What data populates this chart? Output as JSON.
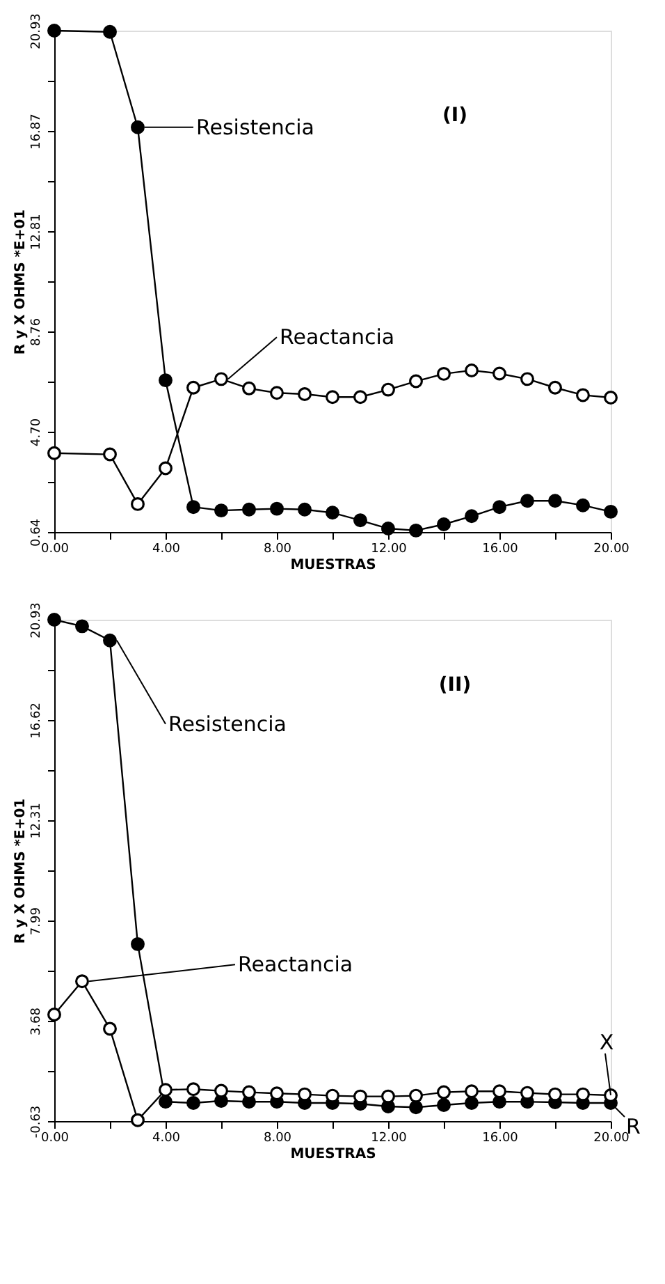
{
  "chart_data": [
    {
      "type": "line",
      "title": "(I)",
      "xlabel": "MUESTRAS",
      "ylabel": "R y X OHMS *E+01",
      "marker": "circle",
      "line_style": "solid",
      "grid": false,
      "xlim": [
        0,
        20
      ],
      "xticks": [
        {
          "value": 0,
          "label": "0.00"
        },
        {
          "value": 2,
          "label": null
        },
        {
          "value": 4,
          "label": "4.00"
        },
        {
          "value": 6,
          "label": null
        },
        {
          "value": 8,
          "label": "8.00"
        },
        {
          "value": 10,
          "label": null
        },
        {
          "value": 12,
          "label": "12.00"
        },
        {
          "value": 14,
          "label": null
        },
        {
          "value": 16,
          "label": "16.00"
        },
        {
          "value": 18,
          "label": null
        },
        {
          "value": 20,
          "label": "20.00"
        }
      ],
      "ylim": [
        0.64,
        20.93
      ],
      "yticks": [
        0.64,
        {
          "value": 2.67,
          "label": null
        },
        {
          "value": 4.7,
          "label": "4.70"
        },
        {
          "value": 6.73,
          "label": null
        },
        8.76,
        {
          "value": 10.79,
          "label": null
        },
        12.81,
        {
          "value": 14.84,
          "label": null
        },
        16.87,
        {
          "value": 18.9,
          "label": null
        },
        20.93
      ],
      "x": [
        0,
        2,
        3,
        4,
        5,
        6,
        7,
        8,
        9,
        10,
        11,
        12,
        13,
        14,
        15,
        16,
        17,
        18,
        19,
        20
      ],
      "series": [
        {
          "name": "Resistencia",
          "color": "#000000",
          "values": [
            20.93,
            20.88,
            17.02,
            6.78,
            1.65,
            1.51,
            1.55,
            1.58,
            1.55,
            1.42,
            1.11,
            0.78,
            0.7,
            0.95,
            1.28,
            1.65,
            1.9,
            1.9,
            1.72,
            1.46
          ]
        },
        {
          "name": "Reactancia",
          "color": "#000000",
          "values": [
            3.83,
            3.78,
            1.77,
            3.22,
            6.48,
            6.83,
            6.45,
            6.27,
            6.22,
            6.1,
            6.1,
            6.4,
            6.74,
            7.04,
            7.18,
            7.05,
            6.83,
            6.48,
            6.18,
            6.08
          ]
        }
      ]
    },
    {
      "type": "line",
      "title": "(II)",
      "xlabel": "MUESTRAS",
      "ylabel": "R y X OHMS *E+01",
      "marker": "circle",
      "line_style": "solid",
      "grid": false,
      "xlim": [
        0,
        20
      ],
      "xticks": [
        {
          "value": 0,
          "label": "0.00"
        },
        {
          "value": 2,
          "label": null
        },
        {
          "value": 4,
          "label": "4.00"
        },
        {
          "value": 6,
          "label": null
        },
        {
          "value": 8,
          "label": "8.00"
        },
        {
          "value": 10,
          "label": null
        },
        {
          "value": 12,
          "label": "12.00"
        },
        {
          "value": 14,
          "label": null
        },
        {
          "value": 16,
          "label": "16.00"
        },
        {
          "value": 18,
          "label": null
        },
        {
          "value": 20,
          "label": "20.00"
        }
      ],
      "ylim": [
        -0.63,
        20.93
      ],
      "yticks": [
        -0.63,
        {
          "value": 1.53,
          "label": null
        },
        3.68,
        {
          "value": 5.84,
          "label": null
        },
        7.99,
        {
          "value": 10.15,
          "label": null
        },
        12.31,
        {
          "value": 14.46,
          "label": null
        },
        16.62,
        {
          "value": 18.77,
          "label": null
        },
        20.93
      ],
      "x": [
        0,
        1,
        2,
        3,
        4,
        5,
        6,
        7,
        8,
        9,
        10,
        11,
        12,
        13,
        14,
        15,
        16,
        17,
        18,
        19,
        20
      ],
      "series": [
        {
          "name": "Resistencia",
          "color": "#000000",
          "values": [
            20.93,
            20.65,
            20.04,
            6.98,
            0.2,
            0.15,
            0.24,
            0.2,
            0.2,
            0.15,
            0.15,
            0.11,
            0.0,
            -0.04,
            0.06,
            0.15,
            0.2,
            0.2,
            0.18,
            0.15,
            0.15
          ]
        },
        {
          "name": "Reactancia",
          "color": "#000000",
          "values": [
            3.95,
            5.38,
            3.34,
            -0.59,
            0.71,
            0.74,
            0.67,
            0.61,
            0.56,
            0.52,
            0.46,
            0.43,
            0.43,
            0.46,
            0.61,
            0.65,
            0.65,
            0.58,
            0.52,
            0.52,
            0.48
          ]
        }
      ],
      "annotations": [
        {
          "text": "X",
          "x": 20,
          "y": 0.48
        },
        {
          "text": "R",
          "x": 20,
          "y": 0.15
        }
      ]
    }
  ]
}
